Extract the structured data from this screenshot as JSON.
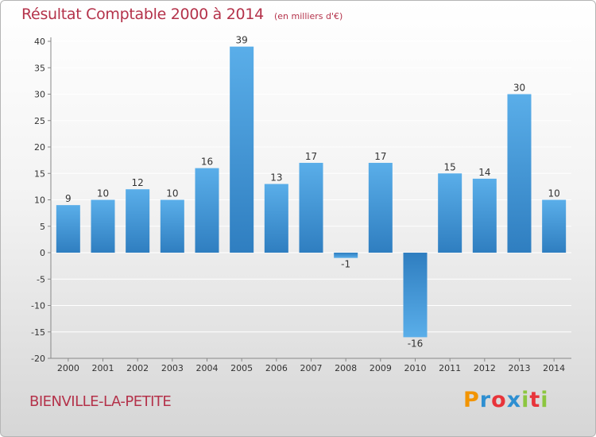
{
  "chart_data": {
    "type": "bar",
    "title": "Résultat Comptable 2000 à 2014",
    "unit_note": "(en milliers d'€)",
    "categories": [
      "2000",
      "2001",
      "2002",
      "2003",
      "2004",
      "2005",
      "2006",
      "2007",
      "2008",
      "2009",
      "2010",
      "2011",
      "2012",
      "2013",
      "2014"
    ],
    "values": [
      9,
      10,
      12,
      10,
      16,
      39,
      13,
      17,
      -1,
      17,
      -16,
      15,
      14,
      30,
      10
    ],
    "value_labels": [
      "9",
      "10",
      "12",
      "10",
      "16",
      "39",
      "13",
      "17",
      "-1",
      "17",
      "-16",
      "15",
      "14",
      "30",
      "10"
    ],
    "ylim": [
      -20,
      40
    ],
    "yticks": [
      40,
      35,
      30,
      25,
      20,
      15,
      10,
      5,
      0,
      -5,
      -10,
      -15,
      -20
    ],
    "ytick_labels": [
      "40",
      "35",
      "30",
      "25",
      "20",
      "15",
      "10",
      "5",
      "0",
      "-5",
      "-10",
      "-15",
      "-20"
    ],
    "xlabel": "",
    "ylabel": "",
    "grid": "horizontal",
    "colors": {
      "bar_light": "#5aaee9",
      "bar_dark": "#2f7ec0",
      "text": "#333333",
      "title": "#b4324a",
      "grid": "#ffffff",
      "axis": "#888888"
    }
  },
  "place_name": "BIENVILLE-LA-PETITE",
  "brand": {
    "text": "Proxiti",
    "letters": [
      "P",
      "r",
      "o",
      "x",
      "i",
      "t",
      "i"
    ],
    "letter_colors": [
      "#f29400",
      "#2e8fd1",
      "#e8343a",
      "#2e8fd1",
      "#8cc63f",
      "#e8343a",
      "#8cc63f"
    ]
  }
}
